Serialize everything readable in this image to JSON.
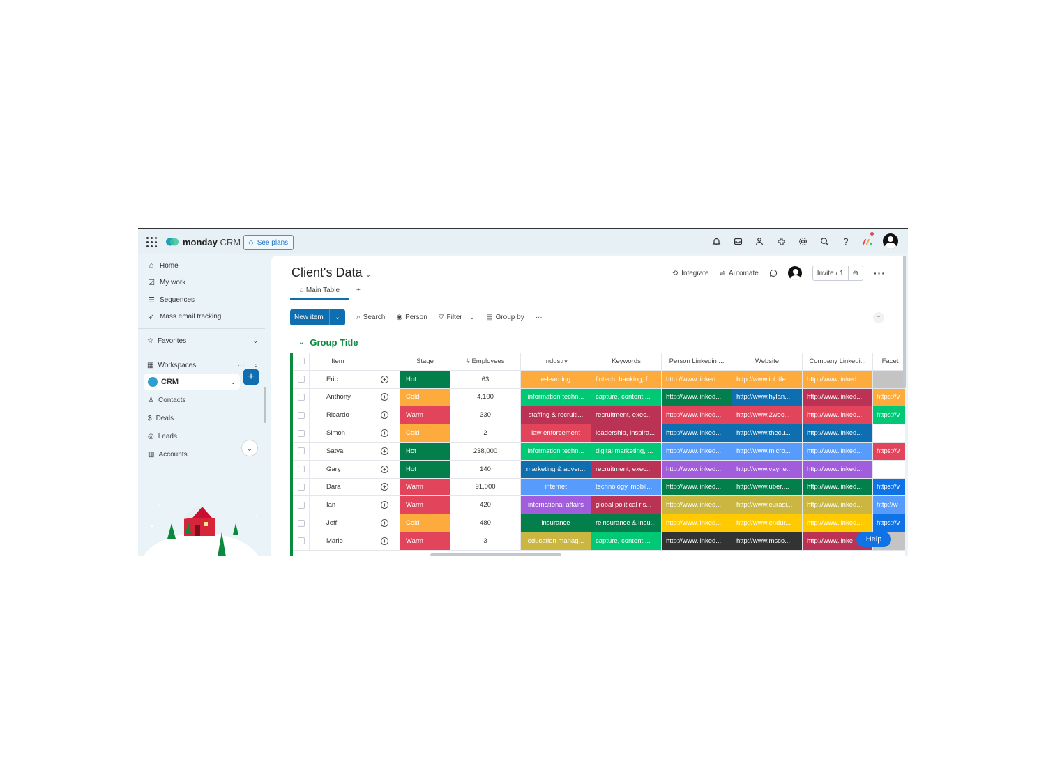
{
  "app": {
    "logo_text": "monday",
    "logo_sub": "CRM",
    "see_plans": "See plans"
  },
  "sidebar": {
    "nav": [
      {
        "label": "Home",
        "icon": "home-icon"
      },
      {
        "label": "My work",
        "icon": "calendar-check-icon"
      },
      {
        "label": "Sequences",
        "icon": "stack-icon"
      },
      {
        "label": "Mass email tracking",
        "icon": "send-icon"
      }
    ],
    "favorites": "Favorites",
    "workspaces": "Workspaces",
    "workspace_name": "CRM",
    "workspace_items": [
      {
        "label": "Contacts",
        "icon": "contacts-icon"
      },
      {
        "label": "Deals",
        "icon": "deals-icon"
      },
      {
        "label": "Leads",
        "icon": "leads-icon"
      },
      {
        "label": "Accounts",
        "icon": "accounts-icon"
      }
    ]
  },
  "board": {
    "title": "Client's Data",
    "integrate": "Integrate",
    "automate": "Automate",
    "invite": "Invite / 1",
    "tab_main": "Main Table",
    "tab_add": "+"
  },
  "toolbar": {
    "new_item": "New item",
    "search": "Search",
    "person": "Person",
    "filter": "Filter",
    "group_by": "Group by",
    "more": "···"
  },
  "group": {
    "title": "Group Title"
  },
  "table": {
    "headers": {
      "item": "Item",
      "stage": "Stage",
      "employees": "# Employees",
      "industry": "Industry",
      "keywords": "Keywords",
      "person_linkedin": "Person Linkedin ...",
      "website": "Website",
      "company_linkedin": "Company Linkedi...",
      "facebook": "Facet"
    },
    "rows": [
      {
        "item": "Eric",
        "stage": "Hot",
        "employees": "63",
        "industry": "e-learning",
        "keywords": "fintech, banking, f...",
        "person_linkedin": "http://www.linked...",
        "website": "http://www.iol.life",
        "company_linkedin": "http://www.linked...",
        "facebook": ""
      },
      {
        "item": "Anthony",
        "stage": "Cold",
        "employees": "4,100",
        "industry": "information techn...",
        "keywords": "capture, content ...",
        "person_linkedin": "http://www.linked...",
        "website": "http://www.hylan...",
        "company_linkedin": "http://www.linked...",
        "facebook": "https://v"
      },
      {
        "item": "Ricardo",
        "stage": "Warm",
        "employees": "330",
        "industry": "staffing & recruiti...",
        "keywords": "recruitment, exec...",
        "person_linkedin": "http://www.linked...",
        "website": "http://www.2wec...",
        "company_linkedin": "http://www.linked...",
        "facebook": "https://v"
      },
      {
        "item": "Simon",
        "stage": "Cold",
        "employees": "2",
        "industry": "law enforcement",
        "keywords": "leadership, inspira...",
        "person_linkedin": "http://www.linked...",
        "website": "http://www.thecu...",
        "company_linkedin": "http://www.linked...",
        "facebook": ""
      },
      {
        "item": "Satya",
        "stage": "Hot",
        "employees": "238,000",
        "industry": "information techn...",
        "keywords": "digital marketing, ...",
        "person_linkedin": "http://www.linked...",
        "website": "http://www.micro...",
        "company_linkedin": "http://www.linked...",
        "facebook": "https://v"
      },
      {
        "item": "Gary",
        "stage": "Hot",
        "employees": "140",
        "industry": "marketing & adver...",
        "keywords": "recruitment, exec...",
        "person_linkedin": "http://www.linked...",
        "website": "http://www.vayne...",
        "company_linkedin": "http://www.linked...",
        "facebook": ""
      },
      {
        "item": "Dara",
        "stage": "Warm",
        "employees": "91,000",
        "industry": "internet",
        "keywords": "technology, mobil...",
        "person_linkedin": "http://www.linked...",
        "website": "http://www.uber....",
        "company_linkedin": "http://www.linked...",
        "facebook": "https://v"
      },
      {
        "item": "Ian",
        "stage": "Warm",
        "employees": "420",
        "industry": "international affairs",
        "keywords": "global political ris...",
        "person_linkedin": "http://www.linked...",
        "website": "http://www.eurasi...",
        "company_linkedin": "http://www.linked...",
        "facebook": "http://w"
      },
      {
        "item": "Jeff",
        "stage": "Cold",
        "employees": "480",
        "industry": "insurance",
        "keywords": "reinsurance & insu...",
        "person_linkedin": "http://www.linked...",
        "website": "http://www.endur...",
        "company_linkedin": "http://www.linked...",
        "facebook": "https://v"
      },
      {
        "item": "Mario",
        "stage": "Warm",
        "employees": "3",
        "industry": "education manag...",
        "keywords": "capture, content ...",
        "person_linkedin": "http://www.linked...",
        "website": "http://www.msco...",
        "company_linkedin": "http://www.linke",
        "facebook": ""
      }
    ],
    "colors": {
      "stage": [
        "#037f4c",
        "#fdab3d",
        "#e2445c",
        "#fdab3d",
        "#037f4c",
        "#037f4c",
        "#e2445c",
        "#e2445c",
        "#fdab3d",
        "#e2445c"
      ],
      "industry": [
        "#fdab3d",
        "#00c875",
        "#bb3354",
        "#e2445c",
        "#00c875",
        "#0f6eb0",
        "#579bfc",
        "#a25ddc",
        "#037f4c",
        "#cab641"
      ],
      "keywords": [
        "#fdab3d",
        "#00c875",
        "#bb3354",
        "#bb3354",
        "#00c875",
        "#bb3354",
        "#579bfc",
        "#bb3354",
        "#037f4c",
        "#00c875"
      ],
      "person_linkedin": [
        "#fdab3d",
        "#037f4c",
        "#e2445c",
        "#0f6eb0",
        "#579bfc",
        "#a25ddc",
        "#037f4c",
        "#cab641",
        "#ffcb00",
        "#333333"
      ],
      "website": [
        "#fdab3d",
        "#0f6eb0",
        "#e2445c",
        "#0f6eb0",
        "#579bfc",
        "#a25ddc",
        "#037f4c",
        "#cab641",
        "#ffcb00",
        "#333333"
      ],
      "company_linkedin": [
        "#fdab3d",
        "#bb3354",
        "#e2445c",
        "#0f6eb0",
        "#579bfc",
        "#a25ddc",
        "#037f4c",
        "#cab641",
        "#ffcb00",
        "#bb3354"
      ],
      "facebook": [
        "#c4c4c4",
        "#fdab3d",
        "#00c875",
        "#ffffff",
        "#e2445c",
        "#ffffff",
        "#0f73e6",
        "#579bfc",
        "#0f73e6",
        "#c4c4c4"
      ]
    }
  },
  "help": "Help"
}
